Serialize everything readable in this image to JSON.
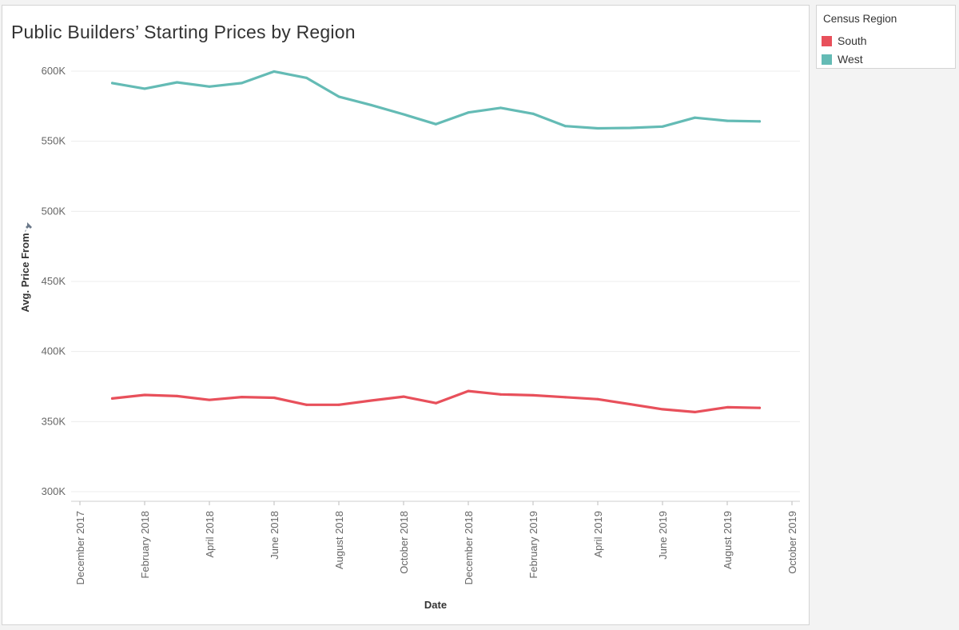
{
  "chart_data": {
    "type": "line",
    "title": "Public Builders’ Starting Prices by Region",
    "xlabel": "Date",
    "ylabel": "Avg. Price From",
    "ylim": [
      300000,
      600000
    ],
    "y_ticks": [
      {
        "value": 300000,
        "label": "300K"
      },
      {
        "value": 350000,
        "label": "350K"
      },
      {
        "value": 400000,
        "label": "400K"
      },
      {
        "value": 450000,
        "label": "450K"
      },
      {
        "value": 500000,
        "label": "500K"
      },
      {
        "value": 550000,
        "label": "550K"
      },
      {
        "value": 600000,
        "label": "600K"
      }
    ],
    "x_ticks": [
      "December 2017",
      "February 2018",
      "April 2018",
      "June 2018",
      "August 2018",
      "October 2018",
      "December 2018",
      "February 2019",
      "April 2019",
      "June 2019",
      "August 2019",
      "October 2019"
    ],
    "x": [
      "2018-01",
      "2018-02",
      "2018-03",
      "2018-04",
      "2018-05",
      "2018-06",
      "2018-07",
      "2018-08",
      "2018-09",
      "2018-10",
      "2018-11",
      "2018-12",
      "2019-01",
      "2019-02",
      "2019-03",
      "2019-04",
      "2019-05",
      "2019-06",
      "2019-07",
      "2019-08",
      "2019-09"
    ],
    "grid": true,
    "legend": {
      "title": "Census Region",
      "placement": "top-right"
    },
    "series": [
      {
        "name": "South",
        "color": "#e8505b",
        "values": [
          366500,
          369000,
          368200,
          365500,
          367500,
          367000,
          362000,
          362000,
          365000,
          367800,
          363200,
          371800,
          369400,
          368800,
          367400,
          366000,
          362400,
          358800,
          356800,
          360200,
          359800
        ]
      },
      {
        "name": "West",
        "color": "#64bbb5",
        "values": [
          591500,
          587500,
          592000,
          589000,
          591500,
          599800,
          595200,
          581800,
          575800,
          569200,
          562200,
          570500,
          573800,
          569600,
          560800,
          559200,
          559500,
          560500,
          566800,
          564600,
          564200
        ]
      }
    ]
  }
}
